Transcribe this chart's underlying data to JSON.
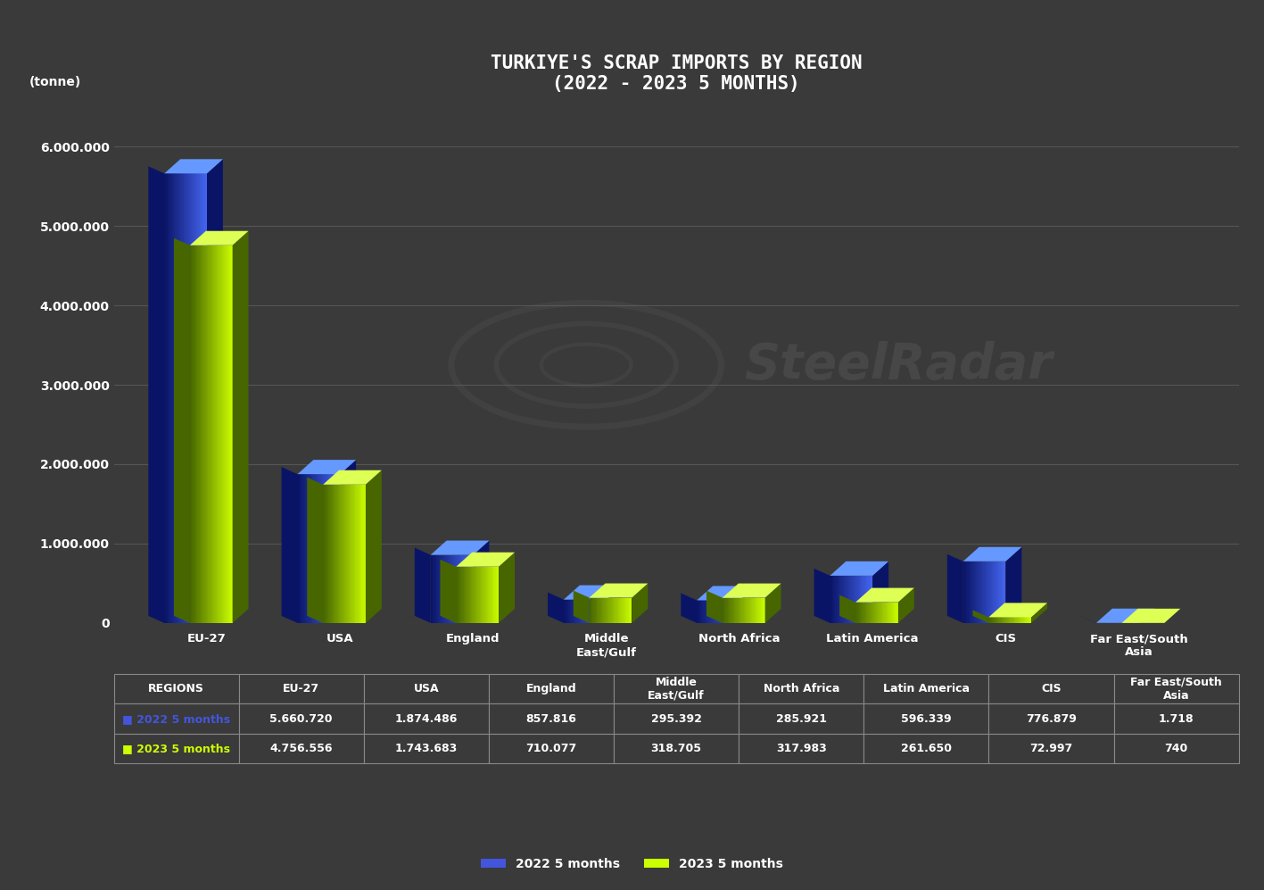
{
  "title": "TURKIYE'S SCRAP IMPORTS BY REGION\n(2022 - 2023 5 MONTHS)",
  "ylabel": "(tonne)",
  "categories": [
    "EU-27",
    "USA",
    "England",
    "Middle\nEast/Gulf",
    "North Africa",
    "Latin America",
    "CIS",
    "Far East/South\nAsia"
  ],
  "series_2022": [
    5660720,
    1874486,
    857816,
    295392,
    285921,
    596339,
    776879,
    1718
  ],
  "series_2023": [
    4756556,
    1743683,
    710077,
    318705,
    317983,
    261650,
    72997,
    740
  ],
  "legend_labels": [
    "2022 5 months",
    "2023 5 months"
  ],
  "color_2022_face": "#4455dd",
  "color_2022_dark": "#0a1550",
  "color_2022_top": "#6688ff",
  "color_2023_face": "#ccff00",
  "color_2023_dark": "#4a6600",
  "color_2023_top": "#ddff55",
  "background_color": "#3a3a3a",
  "grid_color": "#555555",
  "text_color": "#ffffff",
  "ylim": [
    0,
    6500000
  ],
  "yticks": [
    0,
    1000000,
    2000000,
    3000000,
    4000000,
    5000000,
    6000000
  ],
  "table_regions_label": "REGIONS",
  "watermark_text": "SteelRadar"
}
